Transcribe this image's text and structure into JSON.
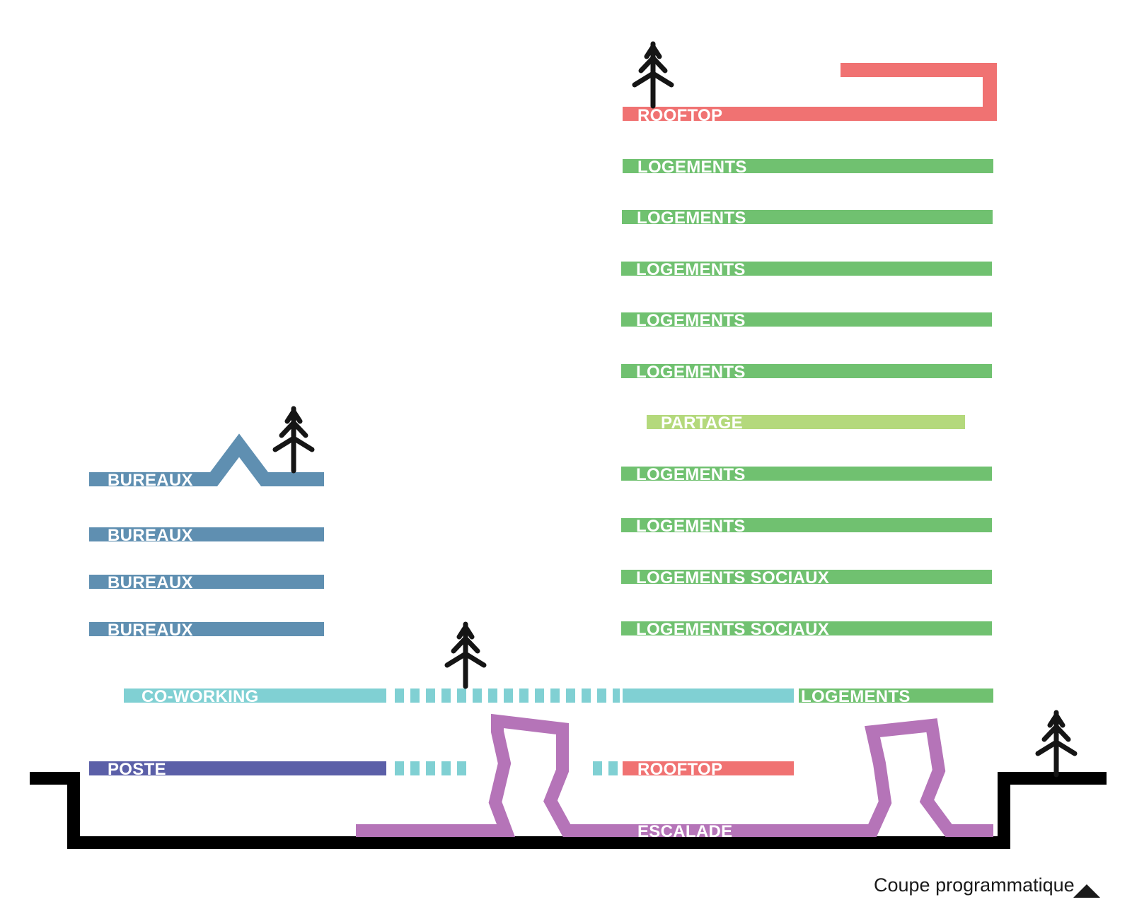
{
  "caption": "Coupe programmatique",
  "colors": {
    "bureaux": "#5f8fb1",
    "logements": "#70c170",
    "partage": "#b4d97c",
    "coworking": "#80d0d3",
    "poste": "#5b5fa8",
    "rooftop": "#f07272",
    "escalade": "#b574b8",
    "ground": "#000000",
    "tree": "#151515"
  },
  "labels": {
    "rooftop_top": "ROOFTOP",
    "logements_1": "LOGEMENTS",
    "logements_2": "LOGEMENTS",
    "logements_3": "LOGEMENTS",
    "logements_4": "LOGEMENTS",
    "logements_5": "LOGEMENTS",
    "partage": "PARTAGE",
    "logements_6": "LOGEMENTS",
    "logements_7": "LOGEMENTS",
    "logements_sociaux_1": "LOGEMENTS SOCIAUX",
    "logements_sociaux_2": "LOGEMENTS SOCIAUX",
    "bureaux_1": "BUREAUX",
    "bureaux_2": "BUREAUX",
    "bureaux_3": "BUREAUX",
    "bureaux_4": "BUREAUX",
    "coworking": "CO-WORKING",
    "logements_ground": "LOGEMENTS",
    "poste": "POSTE",
    "rooftop_low": "ROOFTOP",
    "escalade": "ESCALADE"
  }
}
